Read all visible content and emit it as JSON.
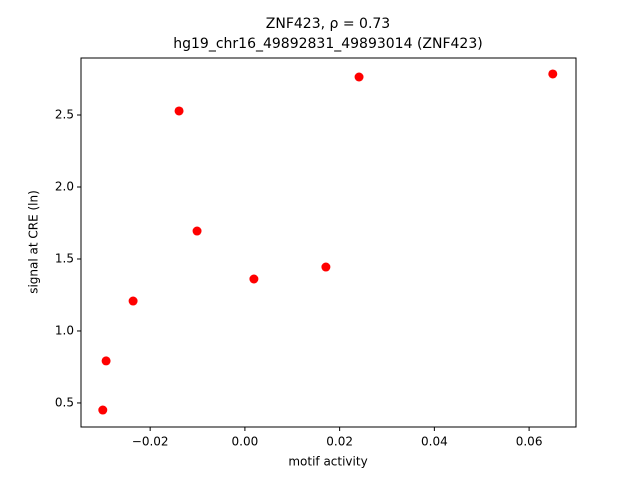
{
  "chart_data": {
    "type": "scatter",
    "title": "ZNF423, ρ = 0.73",
    "subtitle": "hg19_chr16_49892831_49893014 (ZNF423)",
    "x_label": "motif activity",
    "y_label": "signal at CRE (ln)",
    "color": "#ff0000",
    "x": [
      -0.03,
      -0.0293,
      -0.0236,
      -0.0139,
      -0.0101,
      0.0019,
      0.0171,
      0.0241,
      0.065
    ],
    "y": [
      0.451,
      0.792,
      1.208,
      2.528,
      1.694,
      1.361,
      1.444,
      2.764,
      2.785
    ],
    "xlim": [
      -0.0346,
      0.0699
    ],
    "ylim": [
      0.333,
      2.896
    ],
    "xticks": [
      {
        "value": -0.02,
        "label": "−0.02"
      },
      {
        "value": 0,
        "label": "0.00"
      },
      {
        "value": 0.02,
        "label": "0.02"
      },
      {
        "value": 0.04,
        "label": "0.04"
      },
      {
        "value": 0.06,
        "label": "0.06"
      }
    ],
    "yticks": [
      0.5,
      {
        "value": 1,
        "label": "1.0"
      },
      1.5,
      {
        "value": 2,
        "label": "2.0"
      },
      2.5
    ]
  }
}
